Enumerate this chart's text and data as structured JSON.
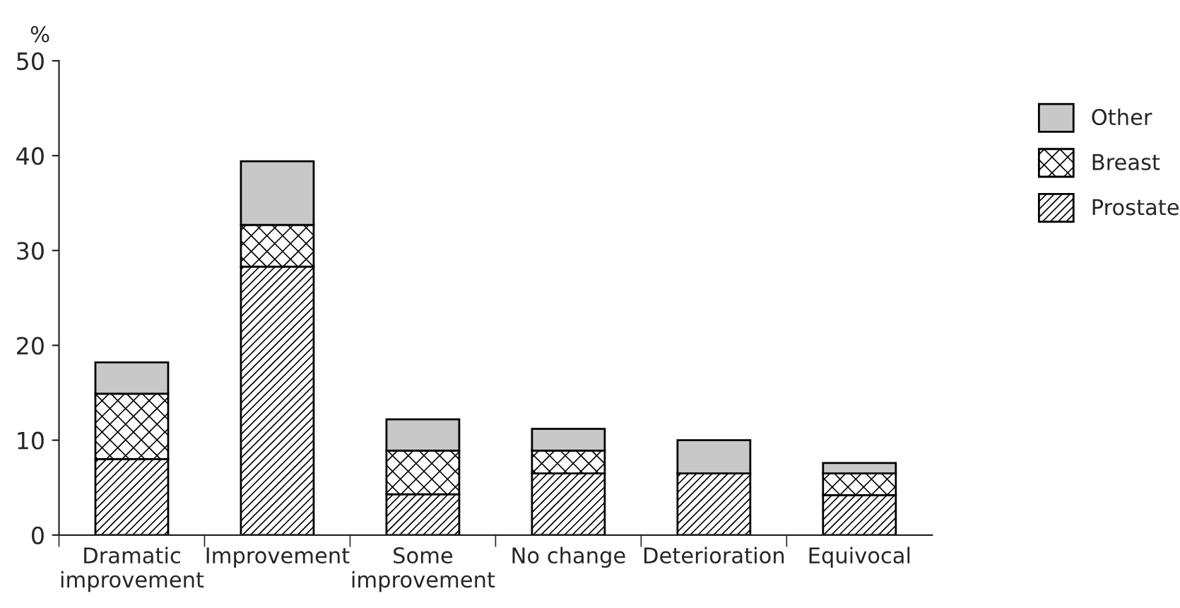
{
  "chart_data": {
    "type": "bar",
    "stacked": true,
    "ylabel": "%",
    "categories": [
      "Dramatic\nimprovement",
      "Improvement",
      "Some\nimprovement",
      "No change",
      "Deterioration",
      "Equivocal"
    ],
    "series": [
      {
        "name": "Prostate",
        "color": "#000000",
        "values": [
          8,
          28.3,
          4.3,
          6.5,
          6.5,
          4.2
        ]
      },
      {
        "name": "Breast",
        "color": "#000000",
        "values": [
          6.9,
          4.4,
          4.6,
          2.4,
          0,
          2.3
        ]
      },
      {
        "name": "Other",
        "color": "#c8c8c8",
        "values": [
          3.3,
          6.7,
          3.3,
          2.3,
          3.5,
          1.1
        ]
      }
    ],
    "ylim": [
      0,
      50
    ],
    "yticks": [
      0,
      10,
      20,
      30,
      40,
      50
    ],
    "legend": "top right",
    "grid": false
  }
}
